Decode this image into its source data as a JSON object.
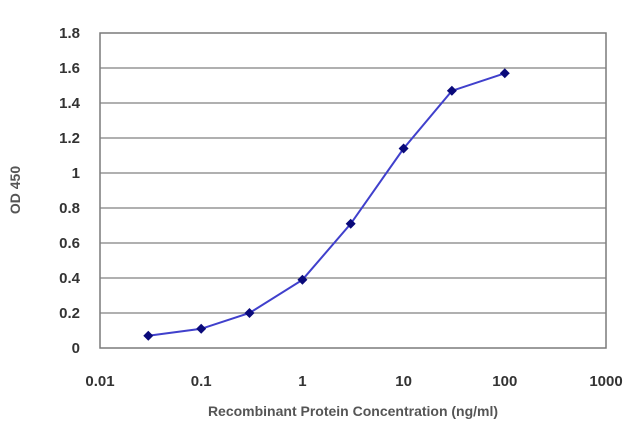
{
  "chart_data": {
    "type": "line",
    "title": "",
    "xlabel": "Recombinant Protein Concentration (ng/ml)",
    "ylabel": "OD 450",
    "x_scale": "log",
    "xlim": [
      0.01,
      1000
    ],
    "ylim": [
      0,
      1.8
    ],
    "x_ticks": [
      "0.01",
      "0.1",
      "1",
      "10",
      "100",
      "1000"
    ],
    "y_ticks": [
      "0",
      "0.2",
      "0.4",
      "0.6",
      "0.8",
      "1",
      "1.2",
      "1.4",
      "1.6",
      "1.8"
    ],
    "grid": "horizontal",
    "series": [
      {
        "x": [
          0.03,
          0.1,
          0.3,
          1,
          3,
          10,
          30,
          100
        ],
        "y": [
          0.07,
          0.11,
          0.2,
          0.39,
          0.71,
          1.14,
          1.47,
          1.57
        ]
      }
    ],
    "colors": {
      "line": "#4040cc",
      "marker": "#0a0a7a",
      "grid": "#808080",
      "plot_bg": "#ffffff"
    }
  }
}
